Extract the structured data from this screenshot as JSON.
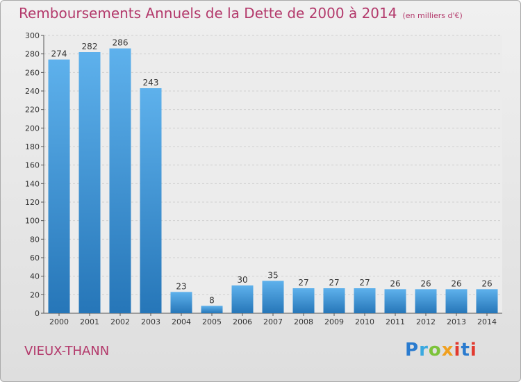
{
  "header": {
    "title": "Remboursements Annuels de la Dette de 2000 à 2014",
    "unit": "(en milliers d'€)"
  },
  "commune": "VIEUX-THANN",
  "logo": {
    "text": "Proxiti",
    "letters": [
      "P",
      "r",
      "o",
      "x",
      "i",
      "t",
      "i"
    ]
  },
  "colors": {
    "bar_top": "#5eb1ec",
    "bar_bottom": "#2676b8",
    "accent": "#b3396b"
  },
  "chart_data": {
    "type": "bar",
    "title": "Remboursements Annuels de la Dette de 2000 à 2014",
    "xlabel": "",
    "ylabel": "",
    "categories": [
      "2000",
      "2001",
      "2002",
      "2003",
      "2004",
      "2005",
      "2006",
      "2007",
      "2008",
      "2009",
      "2010",
      "2011",
      "2012",
      "2013",
      "2014"
    ],
    "values": [
      274,
      282,
      286,
      243,
      23,
      8,
      30,
      35,
      27,
      27,
      27,
      26,
      26,
      26,
      26
    ],
    "ylim": [
      0,
      300
    ],
    "yticks": [
      0,
      20,
      40,
      60,
      80,
      100,
      120,
      140,
      160,
      180,
      200,
      220,
      240,
      260,
      280,
      300
    ],
    "grid": true,
    "legend": "none"
  }
}
